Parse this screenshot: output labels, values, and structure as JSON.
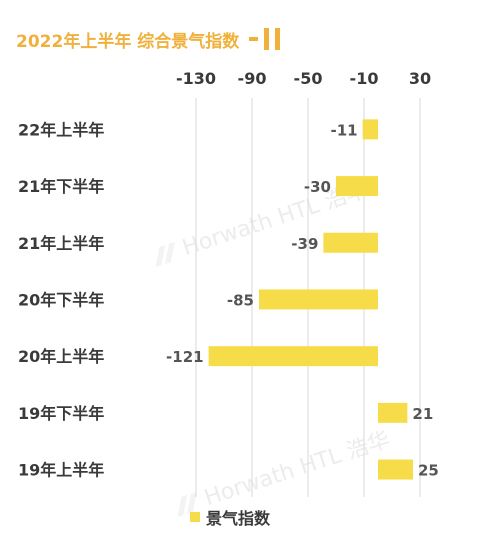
{
  "title": "2022年上半年  综合景气指数",
  "colors": {
    "bar": "#f7dc4a",
    "title": "#f0b13c",
    "grid": "#d9d9d9"
  },
  "chart_data": {
    "type": "bar",
    "orientation": "horizontal",
    "categories": [
      "22年上半年",
      "21年下半年",
      "21年上半年",
      "20年下半年",
      "20年上半年",
      "19年下半年",
      "19年上半年"
    ],
    "series": [
      {
        "name": "景气指数",
        "values": [
          -11,
          -30,
          -39,
          -85,
          -121,
          21,
          25
        ]
      }
    ],
    "xlim": [
      -130,
      30
    ],
    "xticks": [
      -130,
      -90,
      -50,
      -10,
      30
    ],
    "grid": true,
    "axis_position": "top",
    "legend": "bottom-center"
  },
  "watermarks": [
    "Horwath HTL 浩华",
    "Horwath HTL 浩华"
  ]
}
